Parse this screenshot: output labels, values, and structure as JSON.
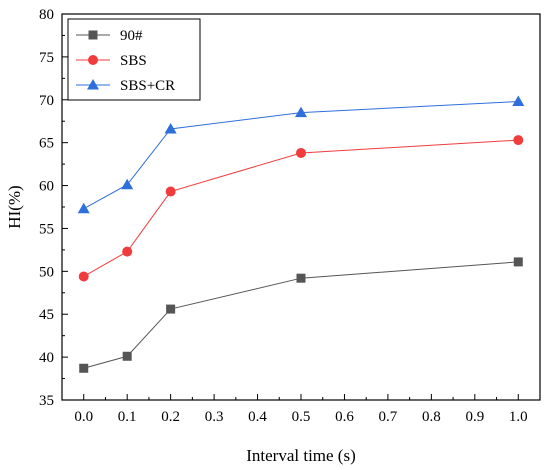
{
  "chart_data": {
    "type": "line",
    "title": "",
    "xlabel": "Interval time (s)",
    "ylabel": "HI(%)",
    "xlim": [
      -0.05,
      1.05
    ],
    "ylim": [
      35,
      80
    ],
    "xticks": [
      0.0,
      0.1,
      0.2,
      0.3,
      0.4,
      0.5,
      0.6,
      0.7,
      0.8,
      0.9,
      1.0
    ],
    "xtick_labels": [
      "0.0",
      "0.1",
      "0.2",
      "0.3",
      "0.4",
      "0.5",
      "0.6",
      "0.7",
      "0.8",
      "0.9",
      "1.0"
    ],
    "yticks": [
      35,
      40,
      45,
      50,
      55,
      60,
      65,
      70,
      75,
      80
    ],
    "ytick_labels": [
      "35",
      "40",
      "45",
      "50",
      "55",
      "60",
      "65",
      "70",
      "75",
      "80"
    ],
    "grid": false,
    "legend_position": "top-left",
    "series": [
      {
        "name": "90#",
        "color": "#555555",
        "marker": "square",
        "x": [
          0.0,
          0.1,
          0.2,
          0.5,
          1.0
        ],
        "y": [
          38.7,
          40.1,
          45.6,
          49.2,
          51.1
        ]
      },
      {
        "name": "SBS",
        "color": "#f03c3c",
        "marker": "circle",
        "x": [
          0.0,
          0.1,
          0.2,
          0.5,
          1.0
        ],
        "y": [
          49.4,
          52.3,
          59.3,
          63.8,
          65.3
        ]
      },
      {
        "name": "SBS+CR",
        "color": "#2e6fdc",
        "marker": "triangle",
        "x": [
          0.0,
          0.1,
          0.2,
          0.5,
          1.0
        ],
        "y": [
          57.3,
          60.1,
          66.6,
          68.5,
          69.8
        ]
      }
    ]
  }
}
